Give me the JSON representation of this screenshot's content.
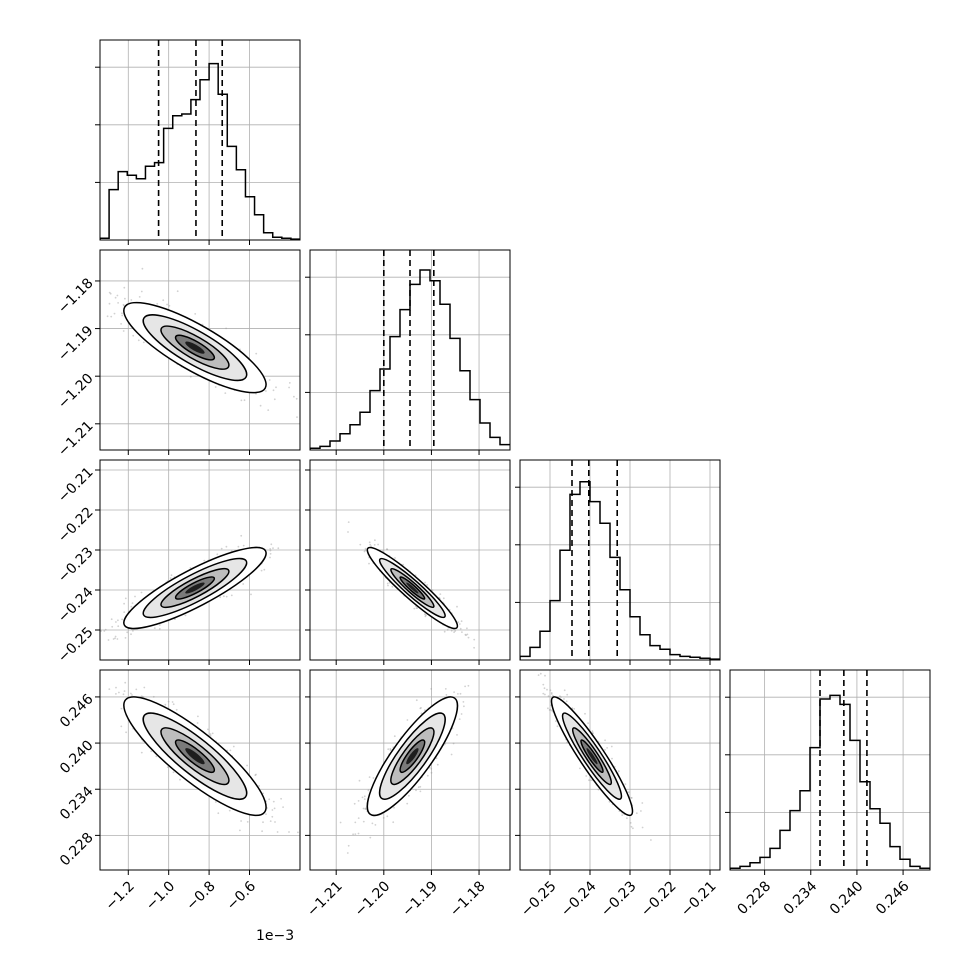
{
  "chart_data": {
    "type": "corner",
    "x_offset_text": "1e−3",
    "grid": true,
    "quantile_lines": "dashed",
    "parameters": [
      {
        "range": [
          -1.34,
          -0.35
        ],
        "ticks": [
          -1.2,
          -1.0,
          -0.8,
          -0.6
        ],
        "tick_labels": [
          "−1.2",
          "−1.0",
          "−0.8",
          "−0.6"
        ],
        "quantiles": [
          -1.05,
          -0.865,
          -0.735
        ],
        "hist_bins": [
          0.01,
          0.28,
          0.38,
          0.36,
          0.34,
          0.41,
          0.43,
          0.62,
          0.69,
          0.7,
          0.78,
          0.89,
          0.98,
          0.81,
          0.52,
          0.39,
          0.24,
          0.14,
          0.04,
          0.015,
          0.01,
          0.005
        ]
      },
      {
        "range": [
          -1.2155,
          -1.1735
        ],
        "ticks": [
          -1.21,
          -1.2,
          -1.19,
          -1.18
        ],
        "tick_labels": [
          "−1.21",
          "−1.20",
          "−1.19",
          "−1.18"
        ],
        "quantiles": [
          -1.2,
          -1.1945,
          -1.1895
        ],
        "hist_bins": [
          0.01,
          0.02,
          0.05,
          0.09,
          0.14,
          0.21,
          0.33,
          0.45,
          0.63,
          0.78,
          0.92,
          1.0,
          0.94,
          0.81,
          0.62,
          0.44,
          0.28,
          0.15,
          0.07,
          0.03
        ]
      },
      {
        "range": [
          -0.2575,
          -0.2075
        ],
        "ticks": [
          -0.25,
          -0.24,
          -0.23,
          -0.22,
          -0.21
        ],
        "tick_labels": [
          "−0.25",
          "−0.24",
          "−0.23",
          "−0.22",
          "−0.21"
        ],
        "quantiles": [
          -0.2445,
          -0.2403,
          -0.2332
        ],
        "hist_bins": [
          0.02,
          0.07,
          0.16,
          0.33,
          0.61,
          0.92,
          0.99,
          0.88,
          0.76,
          0.57,
          0.39,
          0.24,
          0.14,
          0.08,
          0.06,
          0.03,
          0.02,
          0.015,
          0.01,
          0.005
        ]
      },
      {
        "range": [
          0.2235,
          0.2495
        ],
        "ticks": [
          0.228,
          0.234,
          0.24,
          0.246
        ],
        "tick_labels": [
          "0.228",
          "0.234",
          "0.240",
          "0.246"
        ],
        "quantiles": [
          0.2352,
          0.2383,
          0.2413
        ],
        "hist_bins": [
          0.01,
          0.02,
          0.04,
          0.07,
          0.12,
          0.22,
          0.33,
          0.44,
          0.68,
          0.95,
          0.97,
          0.92,
          0.72,
          0.49,
          0.34,
          0.26,
          0.13,
          0.06,
          0.02,
          0.01
        ]
      }
    ],
    "correlations": [
      {
        "pair": [
          1,
          0
        ],
        "center": [
          -0.87,
          -1.194
        ],
        "sd": [
          0.16,
          0.0043
        ],
        "corr": -0.82
      },
      {
        "pair": [
          2,
          0
        ],
        "center": [
          -0.87,
          -0.2395
        ],
        "sd": [
          0.16,
          0.0046
        ],
        "corr": 0.86
      },
      {
        "pair": [
          2,
          1
        ],
        "center": [
          -1.194,
          -0.2395
        ],
        "sd": [
          0.0043,
          0.0046
        ],
        "corr": -0.94
      },
      {
        "pair": [
          3,
          0
        ],
        "center": [
          -0.87,
          0.2383
        ],
        "sd": [
          0.16,
          0.0035
        ],
        "corr": -0.86
      },
      {
        "pair": [
          3,
          1
        ],
        "center": [
          -1.194,
          0.2383
        ],
        "sd": [
          0.0043,
          0.0035
        ],
        "corr": 0.85
      },
      {
        "pair": [
          3,
          2
        ],
        "center": [
          -0.2395,
          0.2383
        ],
        "sd": [
          0.0046,
          0.0035
        ],
        "corr": -0.93
      }
    ]
  }
}
